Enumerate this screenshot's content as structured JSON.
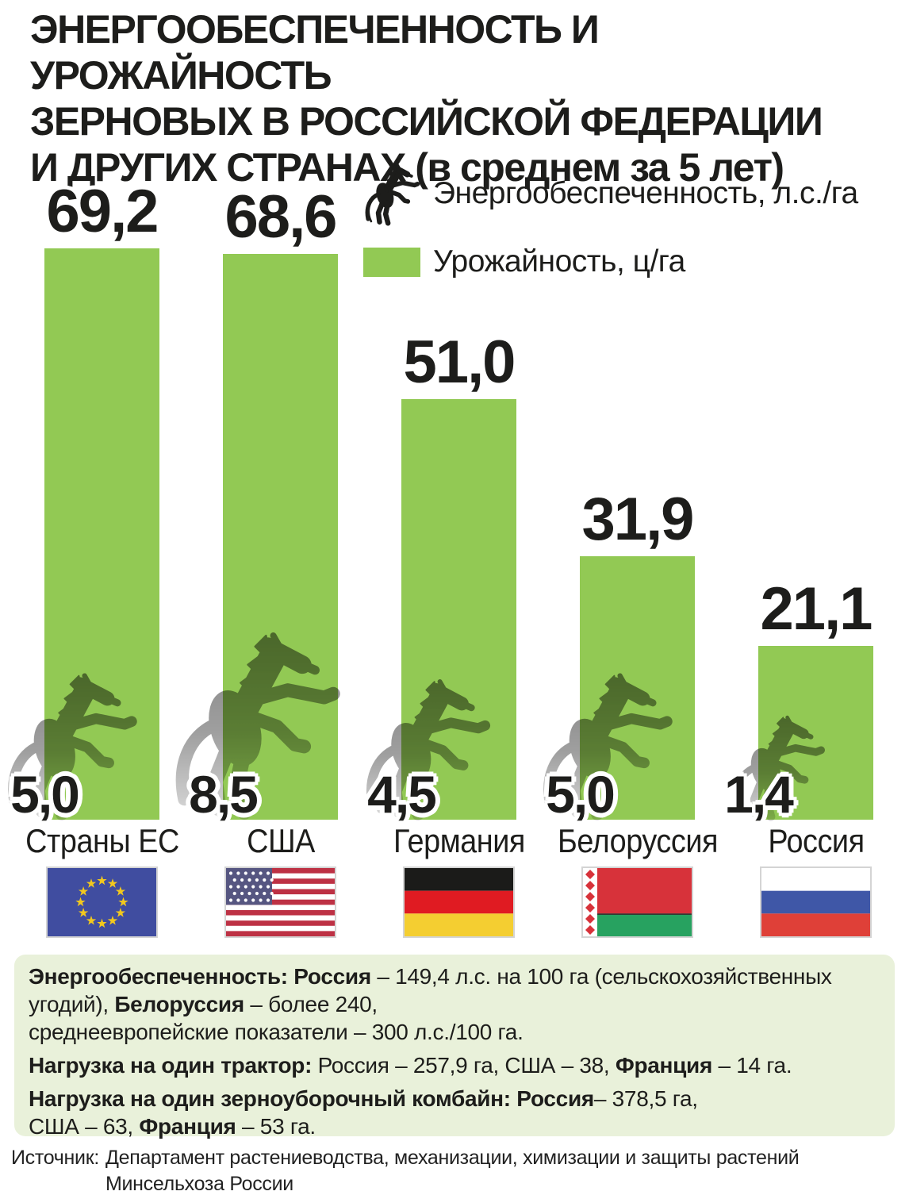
{
  "title": "ЭНЕРГООБЕСПЕЧЕННОСТЬ И УРОЖАЙНОСТЬ\nЗЕРНОВЫХ В РОССИЙСКОЙ ФЕДЕРАЦИИ\nИ ДРУГИХ СТРАНАХ (в среднем за 5 лет)",
  "legend": {
    "energy_label": "Энергообеспеченность, л.с./га",
    "yield_label": "Урожайность, ц/га"
  },
  "chart_data": {
    "type": "bar",
    "title": "Энергообеспеченность и урожайность зерновых в Российской Федерации и других странах (в среднем за 5 лет)",
    "categories": [
      "Страны ЕС",
      "США",
      "Германия",
      "Белоруссия",
      "Россия"
    ],
    "series": [
      {
        "name": "Урожайность, ц/га",
        "values": [
          69.2,
          68.6,
          51.0,
          31.9,
          21.1
        ]
      },
      {
        "name": "Энергообеспеченность, л.с./га",
        "values": [
          5.0,
          8.5,
          4.5,
          5.0,
          1.4
        ]
      }
    ],
    "value_labels": {
      "yield": [
        "69,2",
        "68,6",
        "51,0",
        "31,9",
        "21,1"
      ],
      "energy": [
        "5,0",
        "8,5",
        "4,5",
        "5,0",
        "1,4"
      ]
    },
    "flags": [
      "eu",
      "usa",
      "germany",
      "belarus",
      "russia"
    ],
    "bar_color": "#92c954",
    "ylim": [
      0,
      75
    ],
    "grid": false,
    "axes_shown": false,
    "legend_position": "top-right"
  },
  "colors": {
    "bar_green": "#92c954",
    "info_box_bg": "#e9f1da",
    "text": "#1d1d1b"
  },
  "info_box": {
    "paragraphs": [
      [
        {
          "t": "Энергообеспеченность: Россия",
          "b": true
        },
        {
          "t": " – 149,4 л.с. на 100 га (сельскохозяйственных угодий), ",
          "b": false
        },
        {
          "t": "Белоруссия",
          "b": true
        },
        {
          "t": " – более 240,\nсреднеевропейские показатели – 300 л.с./100 га.",
          "b": false
        }
      ],
      [
        {
          "t": "Нагрузка на один трактор: ",
          "b": true
        },
        {
          "t": "Россия – 257,9 га, США – 38, ",
          "b": false
        },
        {
          "t": "Франция",
          "b": true
        },
        {
          "t": " – 14 га.",
          "b": false
        }
      ],
      [
        {
          "t": "Нагрузка на один зерноуборочный комбайн: ",
          "b": true
        },
        {
          "t": "Россия",
          "b": true
        },
        {
          "t": "– 378,5 га,\nСША – 63, ",
          "b": false
        },
        {
          "t": "Франция",
          "b": true
        },
        {
          "t": " – 53 га.",
          "b": false
        }
      ]
    ]
  },
  "source": {
    "label": "Источник:",
    "text": "Департамент растениеводства, механизации, химизации и защиты растений\nМинсельхоза России"
  }
}
